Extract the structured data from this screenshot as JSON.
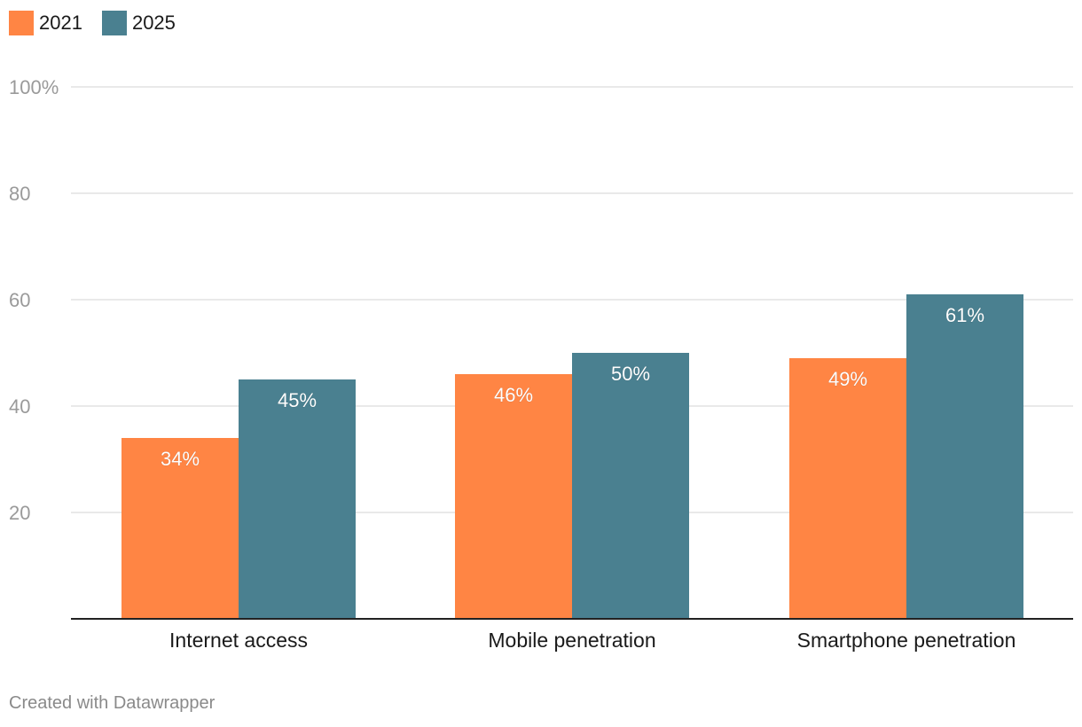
{
  "colors": {
    "s2021": "#ff8544",
    "s2025": "#4a8090"
  },
  "legend": {
    "items": [
      {
        "label": "2021",
        "color": "#ff8544"
      },
      {
        "label": "2025",
        "color": "#4a8090"
      }
    ]
  },
  "chart_data": {
    "type": "bar",
    "categories": [
      "Internet access",
      "Mobile penetration",
      "Smartphone penetration"
    ],
    "series": [
      {
        "name": "2021",
        "values": [
          34,
          46,
          49
        ],
        "labels": [
          "34%",
          "46%",
          "49%"
        ],
        "color": "#ff8544"
      },
      {
        "name": "2025",
        "values": [
          45,
          50,
          61
        ],
        "labels": [
          "45%",
          "50%",
          "61%"
        ],
        "color": "#4a8090"
      }
    ],
    "yticks": [
      20,
      40,
      60,
      80,
      100
    ],
    "ytick_labels": [
      "20",
      "40",
      "60",
      "80",
      "100%"
    ],
    "ylim": [
      0,
      100
    ],
    "grid": true,
    "legend_position": "top-left",
    "title": "",
    "xlabel": "",
    "ylabel": ""
  },
  "footer": {
    "credit": "Created with Datawrapper"
  }
}
